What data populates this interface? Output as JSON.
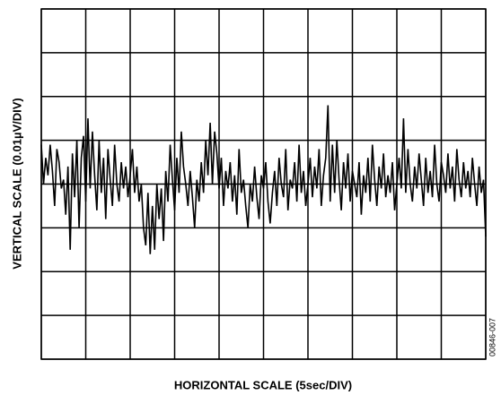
{
  "chart_data": {
    "type": "line",
    "ylabel": "VERTICAL SCALE (0.01µV/DIV)",
    "xlabel": "HORIZONTAL SCALE (5sec/DIV)",
    "annotation": "00846-007",
    "xlim": [
      0,
      10
    ],
    "ylim": [
      0,
      8
    ],
    "xticks": [
      0,
      1,
      2,
      3,
      4,
      5,
      6,
      7,
      8,
      9,
      10
    ],
    "yticks": [
      0,
      1,
      2,
      3,
      4,
      5,
      6,
      7,
      8
    ],
    "grid": true,
    "series": [
      {
        "color": "#000000",
        "x": [
          0,
          0.05,
          0.1,
          0.15,
          0.2,
          0.25,
          0.3,
          0.35,
          0.4,
          0.45,
          0.5,
          0.55,
          0.6,
          0.65,
          0.7,
          0.75,
          0.8,
          0.85,
          0.9,
          0.95,
          1,
          1.05,
          1.1,
          1.15,
          1.2,
          1.25,
          1.3,
          1.35,
          1.4,
          1.45,
          1.5,
          1.55,
          1.6,
          1.65,
          1.7,
          1.75,
          1.8,
          1.85,
          1.9,
          1.95,
          2,
          2.05,
          2.1,
          2.15,
          2.2,
          2.25,
          2.3,
          2.35,
          2.4,
          2.45,
          2.5,
          2.55,
          2.6,
          2.65,
          2.7,
          2.75,
          2.8,
          2.85,
          2.9,
          2.95,
          3,
          3.05,
          3.1,
          3.15,
          3.2,
          3.25,
          3.3,
          3.35,
          3.4,
          3.45,
          3.5,
          3.55,
          3.6,
          3.65,
          3.7,
          3.75,
          3.8,
          3.85,
          3.9,
          3.95,
          4,
          4.05,
          4.1,
          4.15,
          4.2,
          4.25,
          4.3,
          4.35,
          4.4,
          4.45,
          4.5,
          4.55,
          4.6,
          4.65,
          4.7,
          4.75,
          4.8,
          4.85,
          4.9,
          4.95,
          5,
          5.05,
          5.1,
          5.15,
          5.2,
          5.25,
          5.3,
          5.35,
          5.4,
          5.45,
          5.5,
          5.55,
          5.6,
          5.65,
          5.7,
          5.75,
          5.8,
          5.85,
          5.9,
          5.95,
          6,
          6.05,
          6.1,
          6.15,
          6.2,
          6.25,
          6.3,
          6.35,
          6.4,
          6.45,
          6.5,
          6.55,
          6.6,
          6.65,
          6.7,
          6.75,
          6.8,
          6.85,
          6.9,
          6.95,
          7,
          7.05,
          7.1,
          7.15,
          7.2,
          7.25,
          7.3,
          7.35,
          7.4,
          7.45,
          7.5,
          7.55,
          7.6,
          7.65,
          7.7,
          7.75,
          7.8,
          7.85,
          7.9,
          7.95,
          8,
          8.05,
          8.1,
          8.15,
          8.2,
          8.25,
          8.3,
          8.35,
          8.4,
          8.45,
          8.5,
          8.55,
          8.6,
          8.65,
          8.7,
          8.75,
          8.8,
          8.85,
          8.9,
          8.95,
          9,
          9.05,
          9.1,
          9.15,
          9.2,
          9.25,
          9.3,
          9.35,
          9.4,
          9.45,
          9.5,
          9.55,
          9.6,
          9.65,
          9.7,
          9.75,
          9.8,
          9.85,
          9.9,
          9.95,
          10
        ],
        "values": [
          4.9,
          4.0,
          4.6,
          4.2,
          4.9,
          4.3,
          3.5,
          4.8,
          4.5,
          3.9,
          4.1,
          3.3,
          4.4,
          2.5,
          4.7,
          3.7,
          5.0,
          3.0,
          4.6,
          5.1,
          3.6,
          5.5,
          3.9,
          5.2,
          4.2,
          3.4,
          5.0,
          3.8,
          4.6,
          3.2,
          4.8,
          4.1,
          3.5,
          4.9,
          4.0,
          3.6,
          4.5,
          3.9,
          4.4,
          3.7,
          4.2,
          4.8,
          3.8,
          4.4,
          3.6,
          4.0,
          3.0,
          2.6,
          3.8,
          2.4,
          3.5,
          2.5,
          4.0,
          3.2,
          3.9,
          2.7,
          4.3,
          3.6,
          4.9,
          4.1,
          3.4,
          4.6,
          3.8,
          5.2,
          4.4,
          4.0,
          3.5,
          4.3,
          3.7,
          3.0,
          4.1,
          3.6,
          4.5,
          3.8,
          5.0,
          4.2,
          5.4,
          4.0,
          5.2,
          4.7,
          3.9,
          4.6,
          3.5,
          4.3,
          3.9,
          4.5,
          3.6,
          4.2,
          3.3,
          4.8,
          3.8,
          4.1,
          3.5,
          3.0,
          4.0,
          3.6,
          4.4,
          3.7,
          3.2,
          4.2,
          3.9,
          4.5,
          3.6,
          3.1,
          3.8,
          4.3,
          3.5,
          4.6,
          4.0,
          3.7,
          4.8,
          3.4,
          4.1,
          3.9,
          4.5,
          3.6,
          4.9,
          3.8,
          4.3,
          3.5,
          4.0,
          4.6,
          3.7,
          4.4,
          3.9,
          4.8,
          3.5,
          4.2,
          4.6,
          5.8,
          3.6,
          4.9,
          3.8,
          5.0,
          4.1,
          3.4,
          4.5,
          3.9,
          4.7,
          3.6,
          4.3,
          4.0,
          3.7,
          4.5,
          3.3,
          4.2,
          3.8,
          4.6,
          3.6,
          4.9,
          4.1,
          3.5,
          4.4,
          3.9,
          4.7,
          3.7,
          4.2,
          3.8,
          4.5,
          3.4,
          4.0,
          4.6,
          3.9,
          5.5,
          3.8,
          4.8,
          4.0,
          3.6,
          4.4,
          3.9,
          4.7,
          4.1,
          3.5,
          4.6,
          3.8,
          4.3,
          3.7,
          4.9,
          4.0,
          3.6,
          4.5,
          4.2,
          3.8,
          4.7,
          3.9,
          4.4,
          3.6,
          4.8,
          4.1,
          3.7,
          4.5,
          3.9,
          4.3,
          3.7,
          4.6,
          4.0,
          3.5,
          4.4,
          3.8,
          4.1,
          2.8
        ]
      }
    ]
  }
}
